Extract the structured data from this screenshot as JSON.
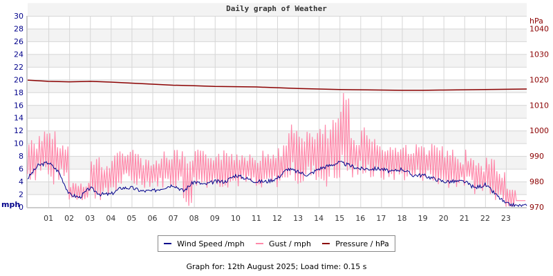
{
  "chart_data": {
    "type": "line",
    "title": "Daily graph of Weather",
    "x_tick_labels": [
      "01",
      "02",
      "03",
      "04",
      "05",
      "06",
      "07",
      "08",
      "09",
      "10",
      "11",
      "12",
      "13",
      "14",
      "15",
      "16",
      "17",
      "18",
      "19",
      "20",
      "21",
      "22",
      "23"
    ],
    "xlim": [
      0,
      24
    ],
    "left_axis": {
      "label": "mph",
      "ylim": [
        0,
        30
      ],
      "ticks": [
        "0",
        "2",
        "4",
        "6",
        "8",
        "10",
        "12",
        "14",
        "16",
        "18",
        "20",
        "22",
        "24",
        "26",
        "28",
        "30"
      ],
      "color": "#00008b"
    },
    "right_axis": {
      "label": "hPa",
      "ylim": [
        970,
        1045
      ],
      "ticks": [
        "970",
        "980",
        "990",
        "1000",
        "1010",
        "1020",
        "1030",
        "1040"
      ],
      "color": "#8b0000"
    },
    "grid": true,
    "legend_position": "bottom",
    "series": [
      {
        "name": "Wind Speed /mph",
        "color": "#00008b",
        "axis": "left",
        "x": [
          0,
          0.5,
          1,
          1.5,
          2,
          2.5,
          3,
          3.5,
          4,
          4.5,
          5,
          5.5,
          6,
          6.5,
          7,
          7.5,
          8,
          8.5,
          9,
          9.5,
          10,
          10.5,
          11,
          11.5,
          12,
          12.5,
          13,
          13.5,
          14,
          14.5,
          15,
          15.5,
          16,
          16.5,
          17,
          17.5,
          18,
          18.5,
          19,
          19.5,
          20,
          20.5,
          21,
          21.5,
          22,
          22.5,
          23,
          23.5,
          24
        ],
        "values": [
          4.5,
          6.5,
          7.0,
          5.5,
          2.0,
          1.5,
          3.0,
          2.0,
          2.0,
          3.0,
          3.0,
          2.5,
          2.5,
          3.0,
          3.5,
          2.5,
          4.0,
          3.5,
          4.0,
          4.0,
          5.0,
          4.5,
          4.0,
          4.0,
          4.5,
          6.0,
          5.5,
          5.0,
          6.0,
          6.5,
          7.0,
          6.5,
          6.0,
          6.0,
          6.0,
          5.5,
          6.0,
          5.0,
          5.0,
          4.5,
          4.0,
          4.0,
          4.0,
          3.0,
          3.5,
          2.0,
          0.5,
          0.2,
          0.2
        ]
      },
      {
        "name": "Gust / mph",
        "color": "#ff88aa",
        "axis": "left",
        "x": [
          0,
          0.5,
          1,
          1.5,
          2,
          2.5,
          3,
          3.5,
          4,
          4.5,
          5,
          5.5,
          6,
          6.5,
          7,
          7.5,
          8,
          8.5,
          9,
          9.5,
          10,
          10.5,
          11,
          11.5,
          12,
          12.5,
          13,
          13.5,
          14,
          14.5,
          15,
          15.5,
          16,
          16.5,
          17,
          17.5,
          18,
          18.5,
          19,
          19.5,
          20,
          20.5,
          21,
          21.5,
          22,
          22.5,
          23,
          23.5
        ],
        "ranges": [
          [
            4,
            11
          ],
          [
            5,
            12
          ],
          [
            3,
            12
          ],
          [
            4,
            10
          ],
          [
            1,
            4
          ],
          [
            1,
            4
          ],
          [
            1,
            8
          ],
          [
            1,
            7
          ],
          [
            2,
            9
          ],
          [
            3,
            10
          ],
          [
            3,
            9
          ],
          [
            3,
            8
          ],
          [
            3,
            8
          ],
          [
            3,
            9
          ],
          [
            3,
            9
          ],
          [
            0,
            8
          ],
          [
            3,
            9
          ],
          [
            3,
            9
          ],
          [
            3,
            9
          ],
          [
            3,
            9
          ],
          [
            3,
            9
          ],
          [
            3,
            9
          ],
          [
            2,
            9
          ],
          [
            3,
            9
          ],
          [
            3,
            10
          ],
          [
            4,
            13
          ],
          [
            3,
            13
          ],
          [
            4,
            12
          ],
          [
            3,
            13
          ],
          [
            3,
            14
          ],
          [
            4,
            18
          ],
          [
            4,
            12
          ],
          [
            5,
            13
          ],
          [
            4,
            11
          ],
          [
            4,
            10
          ],
          [
            4,
            10
          ],
          [
            4,
            10
          ],
          [
            4,
            10
          ],
          [
            4,
            10
          ],
          [
            3,
            10
          ],
          [
            3,
            9
          ],
          [
            3,
            8
          ],
          [
            3,
            9
          ],
          [
            2,
            7
          ],
          [
            2,
            8
          ],
          [
            1,
            6
          ],
          [
            0,
            3
          ],
          [
            1,
            1
          ]
        ]
      },
      {
        "name": "Pressure / hPa",
        "color": "#8b0000",
        "axis": "right",
        "x": [
          0,
          1,
          2,
          3,
          4,
          5,
          6,
          7,
          8,
          9,
          10,
          11,
          12,
          13,
          14,
          15,
          16,
          17,
          18,
          19,
          20,
          21,
          22,
          23,
          24
        ],
        "values": [
          1019.8,
          1019.3,
          1019.1,
          1019.3,
          1019.0,
          1018.6,
          1018.2,
          1017.8,
          1017.6,
          1017.3,
          1017.2,
          1017.1,
          1016.8,
          1016.5,
          1016.3,
          1016.1,
          1016.0,
          1015.9,
          1015.8,
          1015.8,
          1015.9,
          1016.0,
          1016.1,
          1016.2,
          1016.3
        ]
      }
    ]
  },
  "legend": {
    "wind": "Wind Speed /mph",
    "gust": "Gust / mph",
    "pressure": "Pressure / hPa"
  },
  "footer": "Graph for: 12th August 2025; Load time: 0.15 s"
}
